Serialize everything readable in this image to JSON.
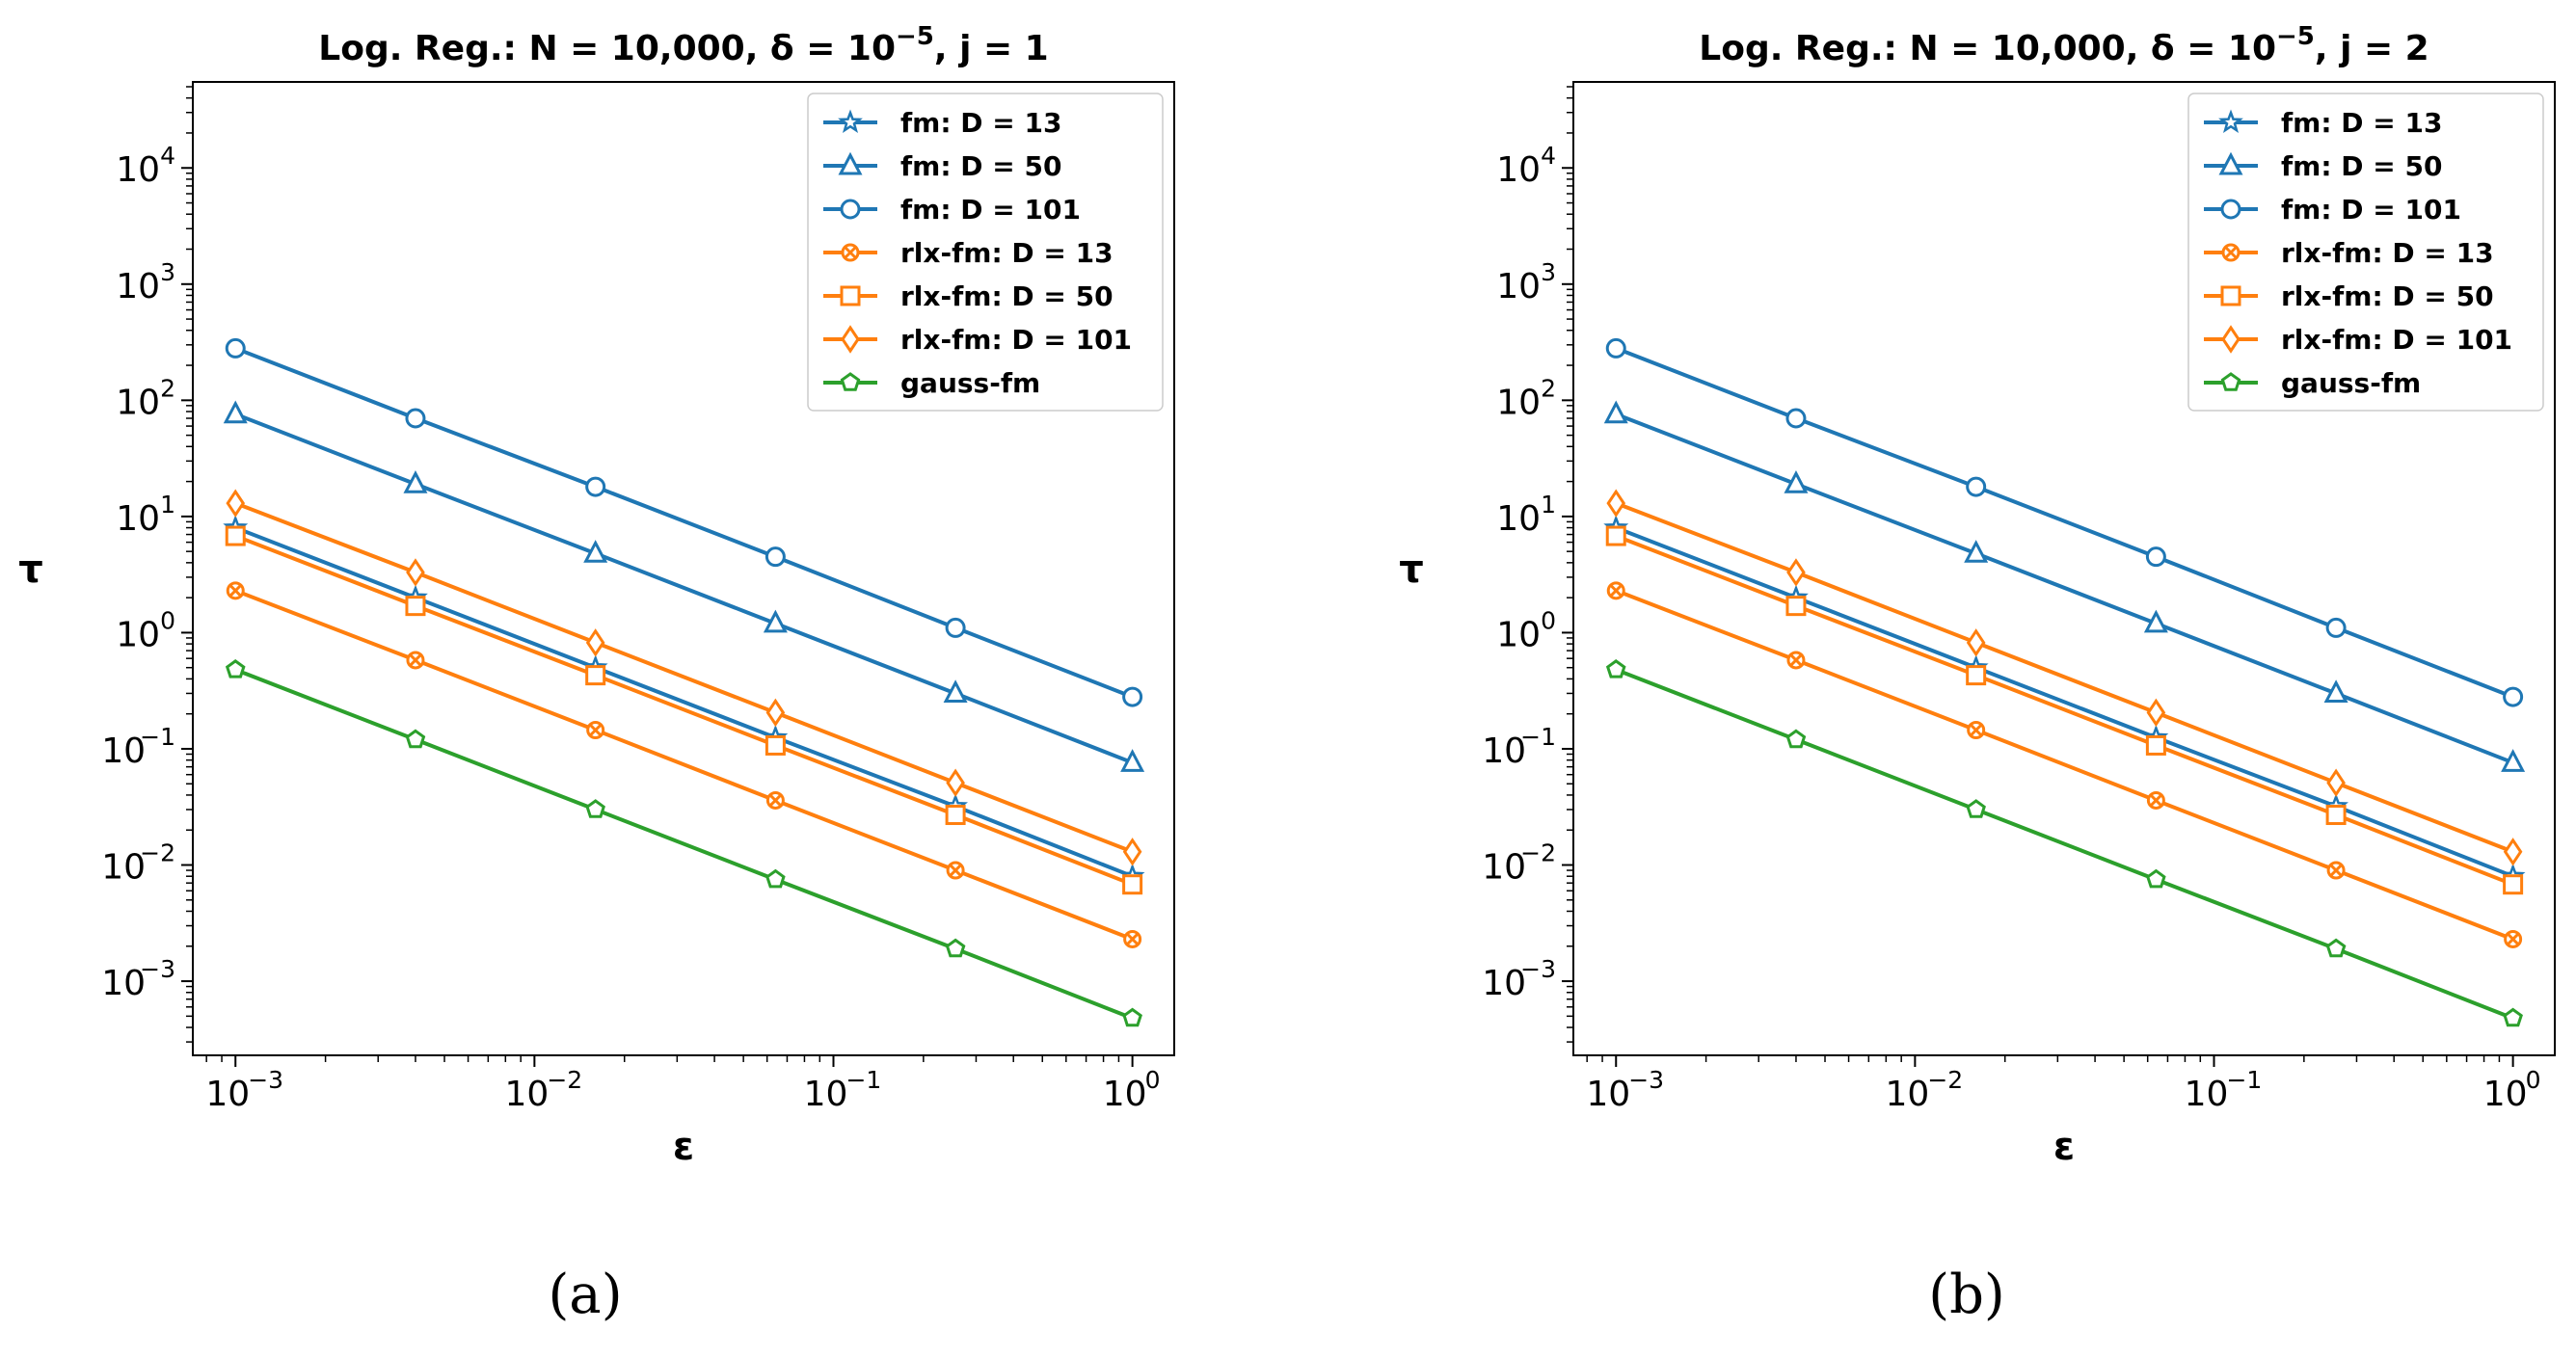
{
  "chart_data": [
    {
      "type": "line",
      "title": "Log. Reg.: N = 10,000, δ = 10⁻⁵, j = 1",
      "caption": "(a)",
      "xlabel": "ε",
      "ylabel": "τ",
      "xscale": "log",
      "yscale": "log",
      "xlim": [
        0.00072,
        1.38
      ],
      "ylim": [
        0.00023,
        55000
      ],
      "xticks": [
        "10",
        "10",
        "10",
        "10"
      ],
      "xtick_exponents": [
        "−3",
        "−2",
        "−1",
        "0"
      ],
      "yticks": [
        "10",
        "10",
        "10",
        "10",
        "10",
        "10",
        "10",
        "10"
      ],
      "ytick_exponents": [
        "−3",
        "−2",
        "−1",
        "0",
        "1",
        "2",
        "3",
        "4"
      ],
      "legend_position": "upper right",
      "x": [
        0.001,
        0.004,
        0.016,
        0.064,
        0.256,
        1.0
      ],
      "series": [
        {
          "name": "fm: D = 13",
          "color": "#1f77b4",
          "marker": "star",
          "values": [
            8.0,
            2.0,
            0.5,
            0.125,
            0.032,
            0.008
          ]
        },
        {
          "name": "fm: D = 50",
          "color": "#1f77b4",
          "marker": "triangle",
          "values": [
            76,
            19,
            4.8,
            1.2,
            0.3,
            0.076
          ]
        },
        {
          "name": "fm: D = 101",
          "color": "#1f77b4",
          "marker": "circle",
          "values": [
            280,
            70,
            18,
            4.5,
            1.1,
            0.28
          ]
        },
        {
          "name": "rlx-fm: D = 13",
          "color": "#ff7f0e",
          "marker": "x",
          "values": [
            2.3,
            0.58,
            0.145,
            0.036,
            0.009,
            0.0023
          ]
        },
        {
          "name": "rlx-fm: D = 50",
          "color": "#ff7f0e",
          "marker": "square",
          "values": [
            6.8,
            1.7,
            0.43,
            0.107,
            0.027,
            0.0068
          ]
        },
        {
          "name": "rlx-fm: D = 101",
          "color": "#ff7f0e",
          "marker": "diamond",
          "values": [
            13,
            3.3,
            0.82,
            0.205,
            0.051,
            0.013
          ]
        },
        {
          "name": "gauss-fm",
          "color": "#2ca02c",
          "marker": "pentagon",
          "values": [
            0.48,
            0.12,
            0.03,
            0.0075,
            0.0019,
            0.00048
          ]
        }
      ]
    },
    {
      "type": "line",
      "title": "Log. Reg.: N = 10,000, δ = 10⁻⁵, j = 2",
      "caption": "(b)",
      "xlabel": "ε",
      "ylabel": "τ",
      "xscale": "log",
      "yscale": "log",
      "xlim": [
        0.00072,
        1.38
      ],
      "ylim": [
        0.00023,
        55000
      ],
      "xticks": [
        "10",
        "10",
        "10",
        "10"
      ],
      "xtick_exponents": [
        "−3",
        "−2",
        "−1",
        "0"
      ],
      "yticks": [
        "10",
        "10",
        "10",
        "10",
        "10",
        "10",
        "10",
        "10"
      ],
      "ytick_exponents": [
        "−3",
        "−2",
        "−1",
        "0",
        "1",
        "2",
        "3",
        "4"
      ],
      "legend_position": "upper right",
      "x": [
        0.001,
        0.004,
        0.016,
        0.064,
        0.256,
        1.0
      ],
      "series": [
        {
          "name": "fm: D = 13",
          "color": "#1f77b4",
          "marker": "star",
          "values": [
            8.0,
            2.0,
            0.5,
            0.125,
            0.032,
            0.008
          ]
        },
        {
          "name": "fm: D = 50",
          "color": "#1f77b4",
          "marker": "triangle",
          "values": [
            76,
            19,
            4.8,
            1.2,
            0.3,
            0.076
          ]
        },
        {
          "name": "fm: D = 101",
          "color": "#1f77b4",
          "marker": "circle",
          "values": [
            280,
            70,
            18,
            4.5,
            1.1,
            0.28
          ]
        },
        {
          "name": "rlx-fm: D = 13",
          "color": "#ff7f0e",
          "marker": "x",
          "values": [
            2.3,
            0.58,
            0.145,
            0.036,
            0.009,
            0.0023
          ]
        },
        {
          "name": "rlx-fm: D = 50",
          "color": "#ff7f0e",
          "marker": "square",
          "values": [
            6.8,
            1.7,
            0.43,
            0.107,
            0.027,
            0.0068
          ]
        },
        {
          "name": "rlx-fm: D = 101",
          "color": "#ff7f0e",
          "marker": "diamond",
          "values": [
            13,
            3.3,
            0.82,
            0.205,
            0.051,
            0.013
          ]
        },
        {
          "name": "gauss-fm",
          "color": "#2ca02c",
          "marker": "pentagon",
          "values": [
            0.48,
            0.12,
            0.03,
            0.0075,
            0.0019,
            0.00048
          ]
        }
      ]
    }
  ]
}
